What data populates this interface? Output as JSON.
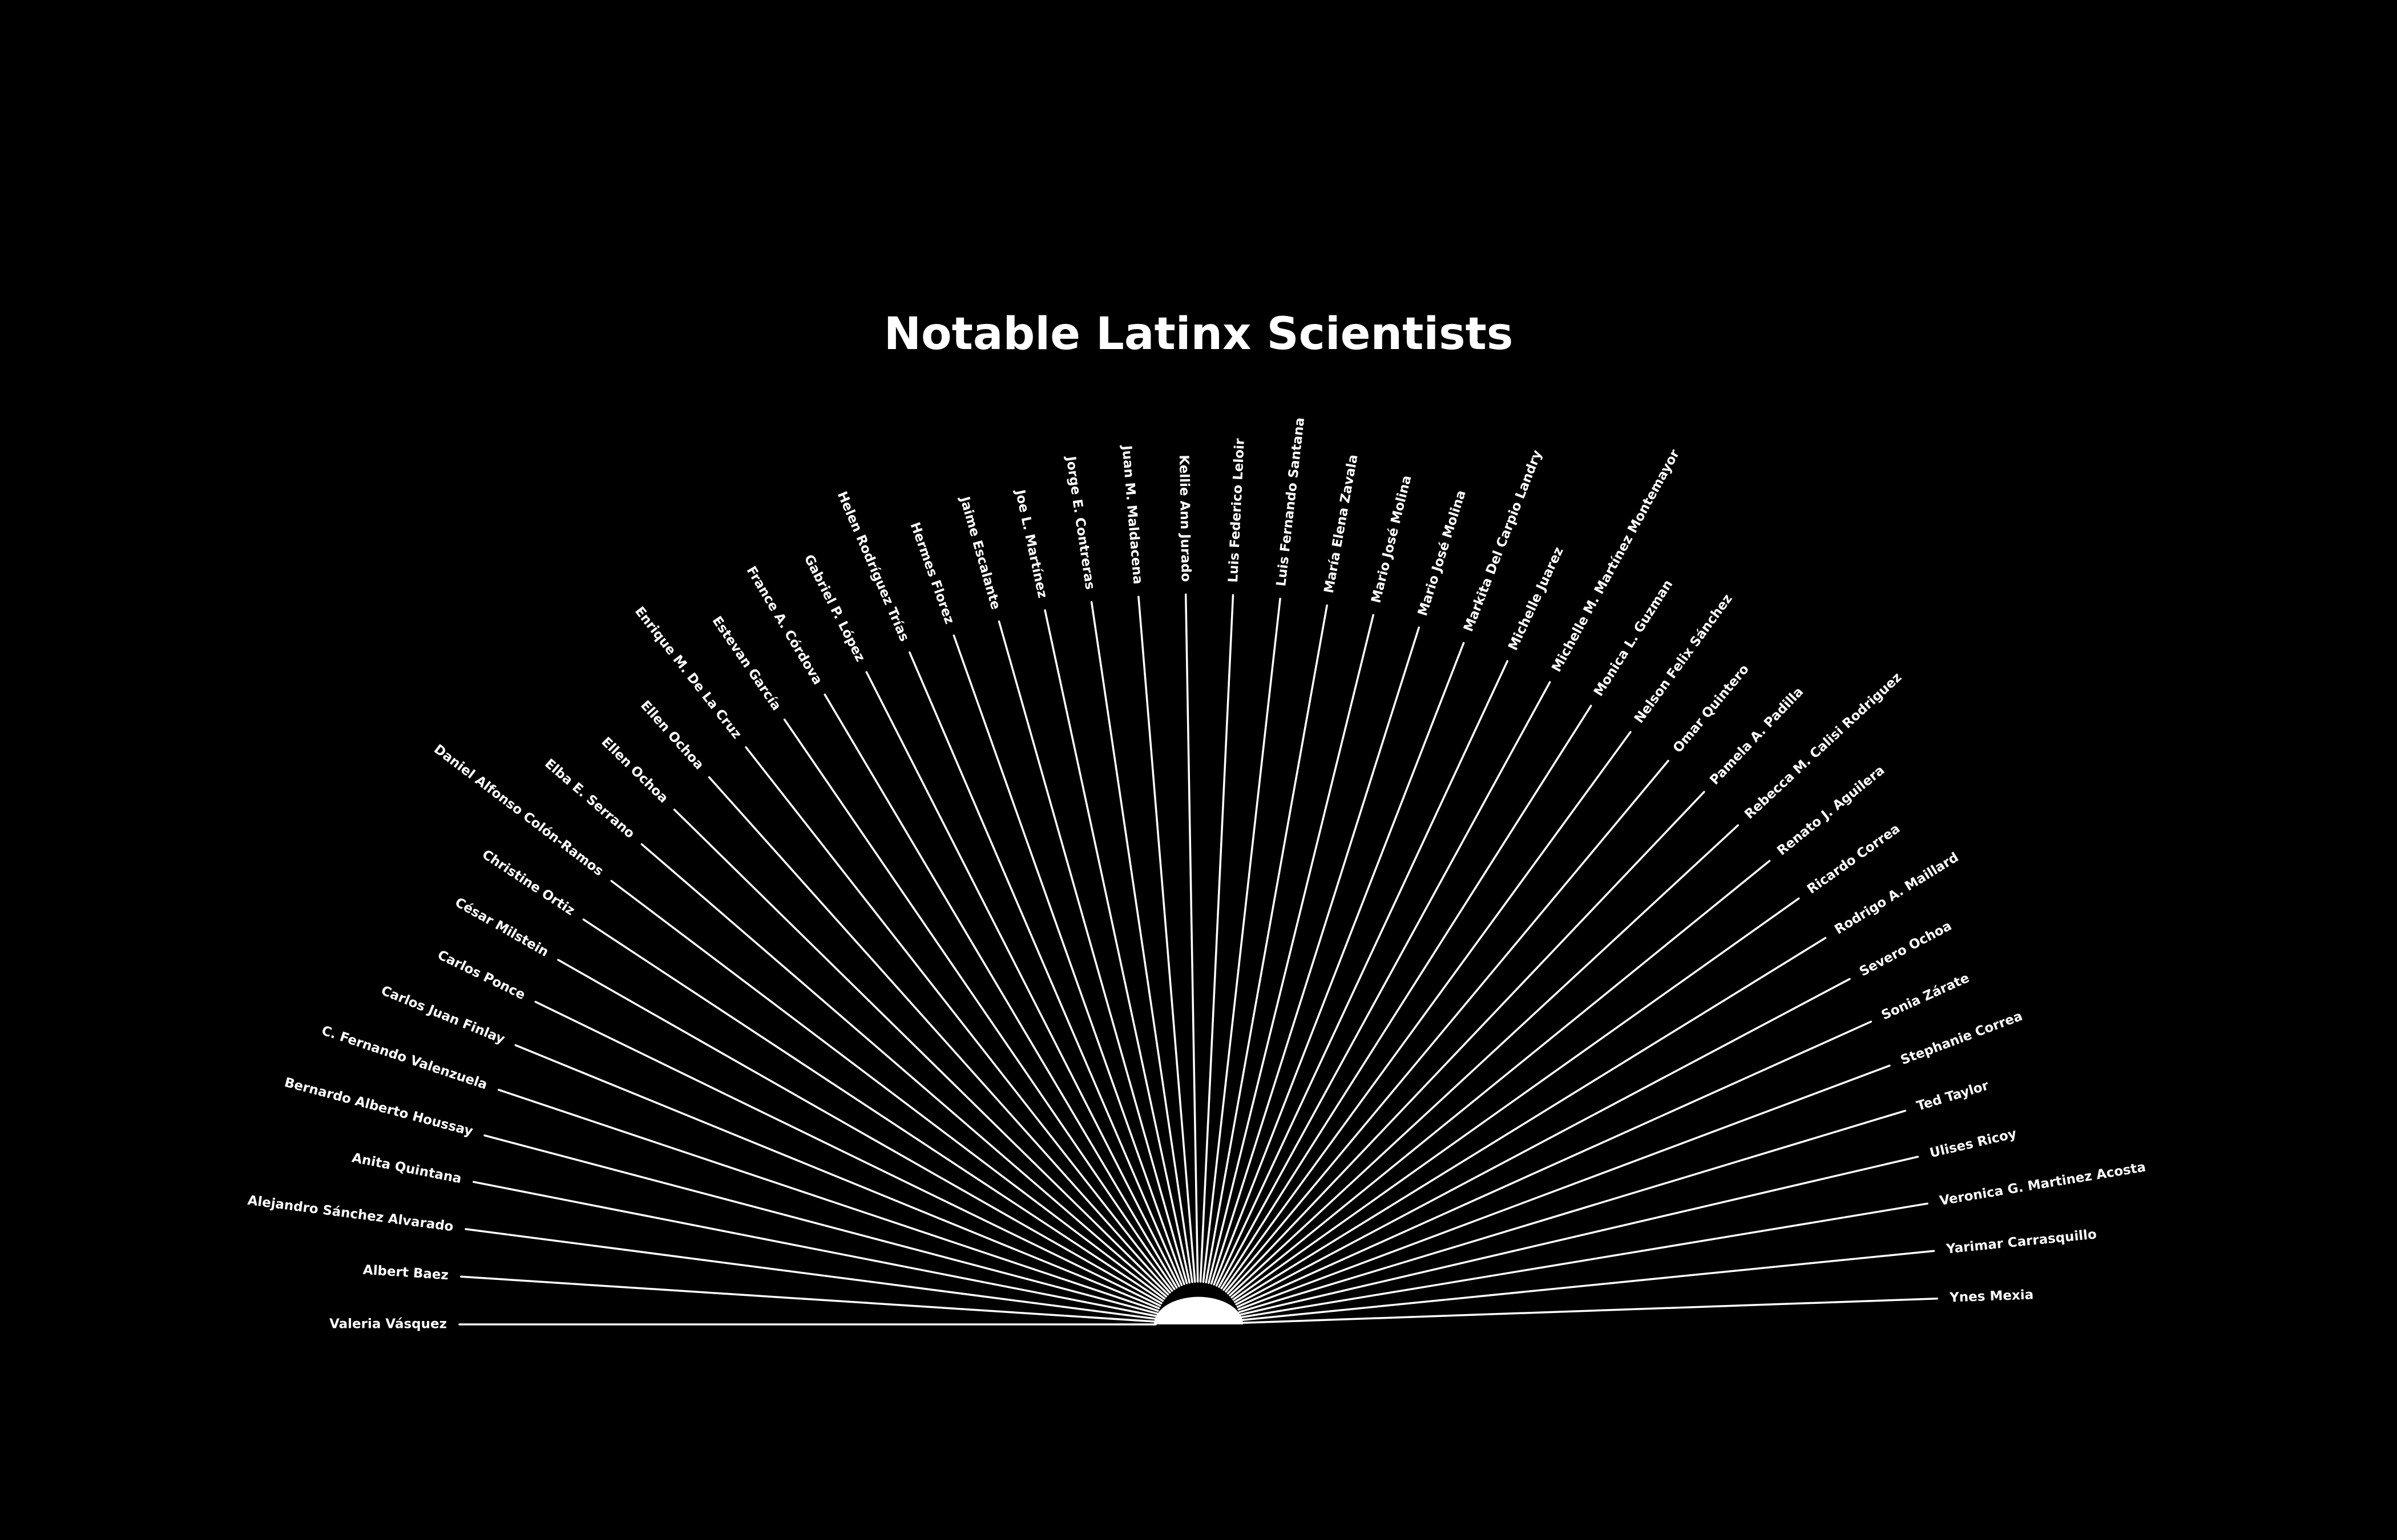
{
  "title": "Notable Latinx Scientists",
  "colors": {
    "background": "#000000",
    "foreground": "#ffffff"
  },
  "names": [
    "Valeria Vásquez",
    "Albert Baez",
    "Alejandro Sánchez Alvarado",
    "Anita Quintana",
    "Bernardo Alberto Houssay",
    "C. Fernando Valenzuela",
    "Carlos Juan Finlay",
    "Carlos Ponce",
    "César Milstein",
    "Christine Ortiz",
    "Daniel Alfonso Colón-Ramos",
    "Elba E. Serrano",
    "Ellen Ochoa",
    "Ellen Ochoa",
    "Enrique M. De La Cruz",
    "Estevan García",
    "France A. Córdova",
    "Gabriel P. López",
    "Helen Rodríguez Trías",
    "Hermes Florez",
    "Jaime Escalante",
    "Joe L. Martínez",
    "Jorge E. Contreras",
    "Juan M. Maldacena",
    "Kellie Ann Jurado",
    "Luis Federico Leloir",
    "Luis Fernando Santana",
    "María Elena Zavala",
    "Mario José Molina",
    "Mario José Molina",
    "Markita Del Carpio Landry",
    "Michelle Juarez",
    "Michelle M. Martínez Montemayor",
    "Monica L. Guzman",
    "Nelson Felix Sánchez",
    "Omar Quintero",
    "Pamela A. Padilla",
    "Rebecca M. Calisi Rodriguez",
    "Renato J. Aguilera",
    "Ricardo Correa",
    "Rodrigo A. Maillard",
    "Severo Ochoa",
    "Sonia Zárate",
    "Stephanie Correa",
    "Ted Taylor",
    "Ulises Ricoy",
    "Veronica G. Martinez Acosta",
    "Yarimar Carrasquillo",
    "Ynes Mexia"
  ]
}
